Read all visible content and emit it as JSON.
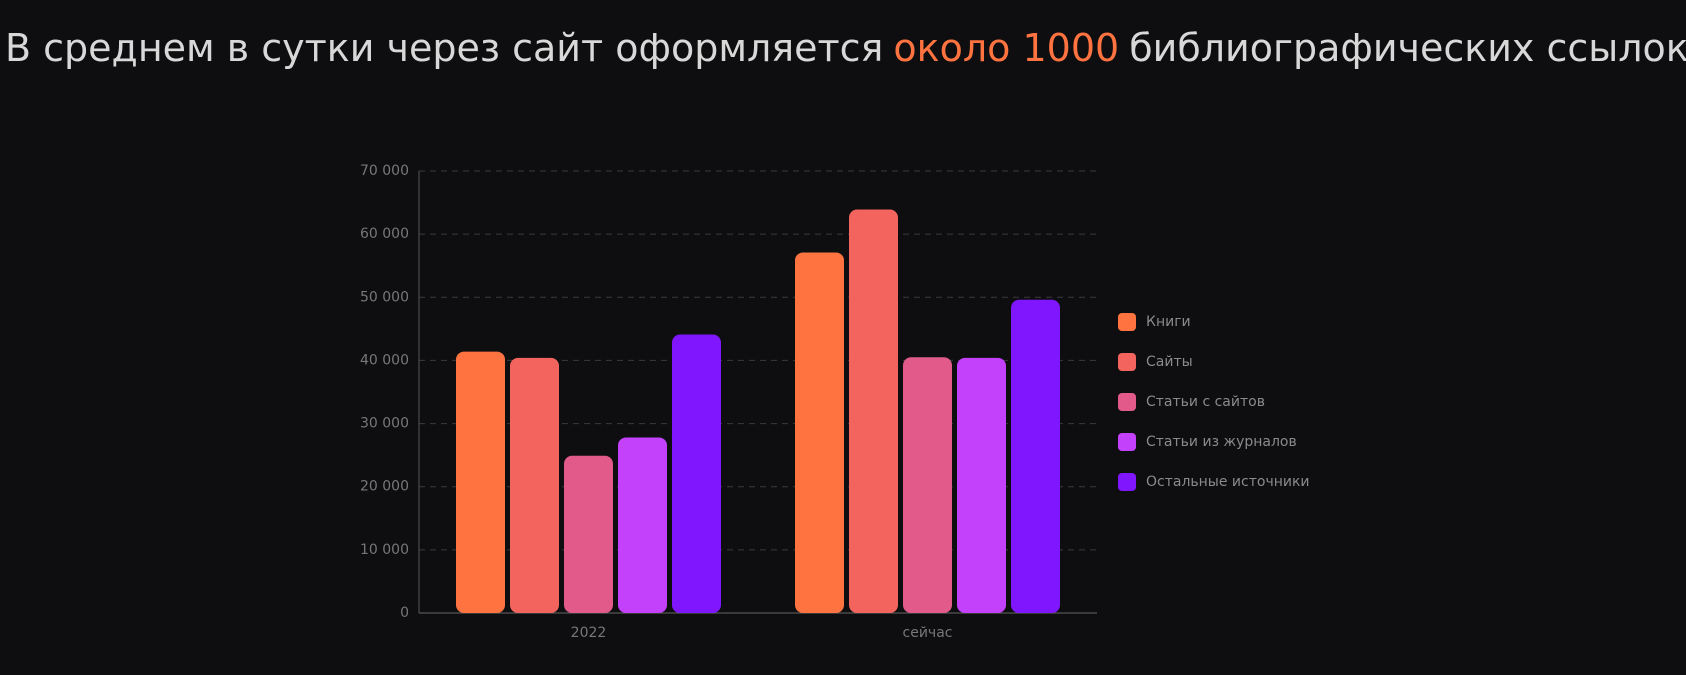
{
  "chart_data": {
    "type": "bar",
    "title_start": "В среднем в сутки через сайт оформляется",
    "title_highlight": "около 1000",
    "title_end": "библиографических ссылок",
    "categories": [
      "2022",
      "сейчас"
    ],
    "series": [
      {
        "name": "Книги",
        "color": "#ff7340",
        "values": [
          41400,
          57100
        ]
      },
      {
        "name": "Сайты",
        "color": "#f2645d",
        "values": [
          40400,
          63900
        ]
      },
      {
        "name": "Статьи с сайтов",
        "color": "#e25a8a",
        "values": [
          24900,
          40500
        ]
      },
      {
        "name": "Статьи из журналов",
        "color": "#c341fb",
        "values": [
          27800,
          40400
        ]
      },
      {
        "name": "Остальные источники",
        "color": "#7f16fd",
        "values": [
          44100,
          49600
        ]
      }
    ],
    "ylim": [
      0,
      70000
    ],
    "yticks": [
      0,
      {
        "value": 10000,
        "label": "10 000"
      },
      {
        "value": 20000,
        "label": "20 000"
      },
      {
        "value": 30000,
        "label": "30 000"
      },
      {
        "value": 40000,
        "label": "40 000"
      },
      {
        "value": 50000,
        "label": "50 000"
      },
      {
        "value": 60000,
        "label": "60 000"
      },
      {
        "value": 70000,
        "label": "70 000"
      }
    ],
    "grid": true,
    "legend": "right"
  }
}
